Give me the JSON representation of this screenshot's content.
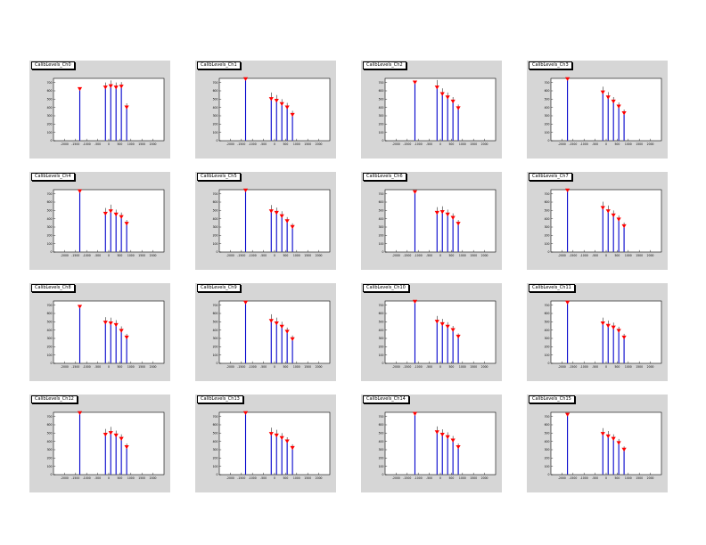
{
  "colors": {
    "page_bg": "#ffffff",
    "pad_bg": "#d6d6d6",
    "frame_bg": "#ffffff",
    "frame_border": "#000000",
    "spike": "#0000cc",
    "marker": "#ff0000",
    "error_bar": "#000000",
    "tick_text": "#000000"
  },
  "chart_defaults": {
    "xlim": [
      -2500,
      2500
    ],
    "ylim": [
      0,
      750
    ],
    "x_ticks": [
      -2000,
      -1500,
      -1000,
      -500,
      0,
      500,
      1000,
      1500,
      2000
    ],
    "y_ticks": [
      0,
      100,
      200,
      300,
      400,
      500,
      600,
      700
    ],
    "marker_style": "triangle-down",
    "grid": false,
    "legend": "none"
  },
  "chart_data": [
    {
      "type": "bar",
      "title": "CalibLevels_Ch0",
      "x": [
        -1310,
        -150,
        90,
        330,
        570,
        810
      ],
      "values": [
        620,
        640,
        655,
        640,
        650,
        400
      ],
      "errors": [
        15,
        60,
        70,
        60,
        55,
        50
      ],
      "xlim": [
        -2500,
        2500
      ],
      "ylim": [
        0,
        750
      ]
    },
    {
      "type": "bar",
      "title": "CalibLevels_Ch1",
      "x": [
        -1310,
        -150,
        90,
        330,
        570,
        810
      ],
      "values": [
        740,
        500,
        480,
        440,
        400,
        310
      ],
      "errors": [
        10,
        80,
        70,
        60,
        55,
        50
      ],
      "xlim": [
        -2500,
        2500
      ],
      "ylim": [
        0,
        750
      ]
    },
    {
      "type": "bar",
      "title": "CalibLevels_Ch2",
      "x": [
        -1150,
        -150,
        90,
        330,
        570,
        810
      ],
      "values": [
        700,
        640,
        560,
        520,
        470,
        390
      ],
      "errors": [
        15,
        90,
        70,
        60,
        55,
        45
      ],
      "xlim": [
        -2500,
        2500
      ],
      "ylim": [
        0,
        750
      ]
    },
    {
      "type": "bar",
      "title": "CalibLevels_Ch3",
      "x": [
        -1750,
        -150,
        90,
        330,
        570,
        810
      ],
      "values": [
        740,
        580,
        520,
        470,
        410,
        330
      ],
      "errors": [
        10,
        70,
        65,
        55,
        50,
        45
      ],
      "xlim": [
        -2500,
        2500
      ],
      "ylim": [
        0,
        750
      ]
    },
    {
      "type": "bar",
      "title": "CalibLevels_Ch4",
      "x": [
        -1310,
        -150,
        90,
        330,
        570,
        810
      ],
      "values": [
        730,
        460,
        490,
        450,
        420,
        340
      ],
      "errors": [
        10,
        70,
        80,
        60,
        55,
        45
      ],
      "xlim": [
        -2500,
        2500
      ],
      "ylim": [
        0,
        750
      ]
    },
    {
      "type": "bar",
      "title": "CalibLevels_Ch5",
      "x": [
        -1310,
        -150,
        90,
        330,
        570,
        810
      ],
      "values": [
        740,
        490,
        470,
        430,
        370,
        300
      ],
      "errors": [
        10,
        75,
        65,
        60,
        50,
        45
      ],
      "xlim": [
        -2500,
        2500
      ],
      "ylim": [
        0,
        750
      ]
    },
    {
      "type": "bar",
      "title": "CalibLevels_Ch6",
      "x": [
        -1150,
        -150,
        90,
        330,
        570,
        810
      ],
      "values": [
        720,
        470,
        480,
        450,
        410,
        340
      ],
      "errors": [
        12,
        70,
        70,
        60,
        55,
        45
      ],
      "xlim": [
        -2500,
        2500
      ],
      "ylim": [
        0,
        750
      ]
    },
    {
      "type": "bar",
      "title": "CalibLevels_Ch7",
      "x": [
        -1750,
        -150,
        90,
        330,
        570,
        810
      ],
      "values": [
        740,
        530,
        490,
        440,
        390,
        310
      ],
      "errors": [
        10,
        75,
        70,
        60,
        50,
        45
      ],
      "xlim": [
        -2500,
        2500
      ],
      "ylim": [
        0,
        750
      ]
    },
    {
      "type": "bar",
      "title": "CalibLevels_Ch8",
      "x": [
        -1310,
        -150,
        90,
        330,
        570,
        810
      ],
      "values": [
        680,
        490,
        480,
        460,
        390,
        310
      ],
      "errors": [
        15,
        65,
        70,
        60,
        55,
        45
      ],
      "xlim": [
        -2500,
        2500
      ],
      "ylim": [
        0,
        750
      ]
    },
    {
      "type": "bar",
      "title": "CalibLevels_Ch9",
      "x": [
        -1310,
        -150,
        90,
        330,
        570,
        810
      ],
      "values": [
        730,
        510,
        480,
        440,
        380,
        290
      ],
      "errors": [
        10,
        80,
        70,
        60,
        50,
        45
      ],
      "xlim": [
        -2500,
        2500
      ],
      "ylim": [
        0,
        750
      ]
    },
    {
      "type": "bar",
      "title": "CalibLevels_Ch10",
      "x": [
        -1150,
        -150,
        90,
        330,
        570,
        810
      ],
      "values": [
        740,
        500,
        470,
        440,
        400,
        320
      ],
      "errors": [
        10,
        70,
        65,
        55,
        50,
        40
      ],
      "xlim": [
        -2500,
        2500
      ],
      "ylim": [
        0,
        750
      ]
    },
    {
      "type": "bar",
      "title": "CalibLevels_Ch11",
      "x": [
        -1750,
        -150,
        90,
        330,
        570,
        810
      ],
      "values": [
        730,
        480,
        450,
        430,
        390,
        310
      ],
      "errors": [
        10,
        70,
        65,
        60,
        50,
        45
      ],
      "xlim": [
        -2500,
        2500
      ],
      "ylim": [
        0,
        750
      ]
    },
    {
      "type": "bar",
      "title": "CalibLevels_Ch12",
      "x": [
        -1310,
        -150,
        90,
        330,
        570,
        810
      ],
      "values": [
        740,
        480,
        500,
        470,
        430,
        330
      ],
      "errors": [
        10,
        70,
        75,
        60,
        55,
        45
      ],
      "xlim": [
        -2500,
        2500
      ],
      "ylim": [
        0,
        750
      ]
    },
    {
      "type": "bar",
      "title": "CalibLevels_Ch13",
      "x": [
        -1310,
        -150,
        90,
        330,
        570,
        810
      ],
      "values": [
        740,
        490,
        470,
        440,
        400,
        320
      ],
      "errors": [
        10,
        75,
        70,
        60,
        50,
        45
      ],
      "xlim": [
        -2500,
        2500
      ],
      "ylim": [
        0,
        750
      ]
    },
    {
      "type": "bar",
      "title": "CalibLevels_Ch14",
      "x": [
        -1150,
        -150,
        90,
        330,
        570,
        810
      ],
      "values": [
        730,
        510,
        480,
        450,
        410,
        330
      ],
      "errors": [
        10,
        70,
        65,
        60,
        55,
        45
      ],
      "xlim": [
        -2500,
        2500
      ],
      "ylim": [
        0,
        750
      ]
    },
    {
      "type": "bar",
      "title": "CalibLevels_Ch15",
      "x": [
        -1750,
        -150,
        90,
        330,
        570,
        810
      ],
      "values": [
        720,
        490,
        460,
        430,
        380,
        300
      ],
      "errors": [
        10,
        70,
        65,
        55,
        50,
        40
      ],
      "xlim": [
        -2500,
        2500
      ],
      "ylim": [
        0,
        750
      ]
    }
  ]
}
